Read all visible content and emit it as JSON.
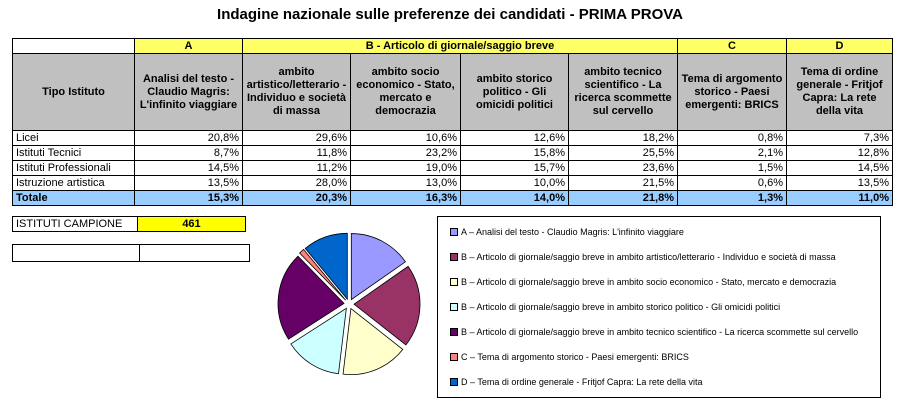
{
  "title": "Indagine nazionale sulle preferenze dei candidati - PRIMA PROVA",
  "table": {
    "group_headers": [
      "A",
      "B - Articolo di giornale/saggio breve",
      "C",
      "D"
    ],
    "row_header": "Tipo Istituto",
    "col_headers": [
      "Analisi del testo - Claudio Magris: L'infinito viaggiare",
      "ambito artistico/letterario - Individuo e società di massa",
      "ambito socio economico - Stato, mercato e democrazia",
      "ambito storico politico - Gli omicidi politici",
      "ambito tecnico scientifico - La ricerca scommette sul cervello",
      "Tema di argomento storico - Paesi emergenti:  BRICS",
      "Tema di ordine generale - Fritjof Capra: La rete della vita"
    ],
    "rows": [
      {
        "label": "Licei",
        "values": [
          "20,8%",
          "29,6%",
          "10,6%",
          "12,6%",
          "18,2%",
          "0,8%",
          "7,3%"
        ]
      },
      {
        "label": "Istituti Tecnici",
        "values": [
          "8,7%",
          "11,8%",
          "23,2%",
          "15,8%",
          "25,5%",
          "2,1%",
          "12,8%"
        ]
      },
      {
        "label": "Istituti Professionali",
        "values": [
          "14,5%",
          "11,2%",
          "19,0%",
          "15,7%",
          "23,6%",
          "1,5%",
          "14,5%"
        ]
      },
      {
        "label": "Istruzione artistica",
        "values": [
          "13,5%",
          "28,0%",
          "13,0%",
          "10,0%",
          "21,5%",
          "0,6%",
          "13,5%"
        ]
      }
    ],
    "total": {
      "label": "Totale",
      "values": [
        "15,3%",
        "20,3%",
        "16,3%",
        "14,0%",
        "21,8%",
        "1,3%",
        "11,0%"
      ]
    }
  },
  "campione": {
    "label": "ISTITUTI CAMPIONE",
    "value": "461"
  },
  "chart_data": {
    "type": "pie",
    "categories": [
      "A – Analisi del testo - Claudio Magris: L'infinito viaggiare",
      "B – Articolo di giornale/saggio breve in ambito artistico/letterario - Individuo e società di massa",
      "B – Articolo di giornale/saggio breve in ambito socio economico - Stato, mercato e democrazia",
      "B – Articolo di giornale/saggio breve in ambito storico politico - Gli omicidi politici",
      "B – Articolo di giornale/saggio breve in ambito tecnico scientifico - La ricerca scommette sul cervello",
      "C – Tema di argomento storico - Paesi emergenti:  BRICS",
      "D – Tema di ordine generale - Fritjof Capra: La rete della vita"
    ],
    "values": [
      15.3,
      20.3,
      16.3,
      14.0,
      21.8,
      1.3,
      11.0
    ],
    "colors": [
      "#9999ff",
      "#993366",
      "#ffffcc",
      "#ccffff",
      "#660066",
      "#ff8080",
      "#0066cc"
    ],
    "legend_position": "right"
  }
}
